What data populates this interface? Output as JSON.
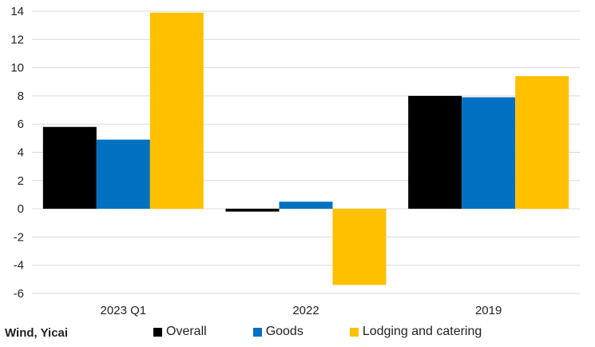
{
  "source": "Wind, Yicai",
  "chart_data": {
    "type": "bar",
    "categories": [
      "2023 Q1",
      "2022",
      "2019"
    ],
    "series": [
      {
        "name": "Overall",
        "values": [
          5.8,
          -0.2,
          8.0
        ],
        "color": "#000000"
      },
      {
        "name": "Goods",
        "values": [
          4.9,
          0.5,
          7.9
        ],
        "color": "#0070C0"
      },
      {
        "name": "Lodging and catering",
        "values": [
          13.9,
          -5.4,
          9.4
        ],
        "color": "#FFC000"
      }
    ],
    "ylim": [
      -6,
      14
    ],
    "yticks": [
      14,
      12,
      10,
      8,
      6,
      4,
      2,
      0,
      -2,
      -4,
      -6
    ],
    "grid": true,
    "legend_position": "bottom"
  }
}
